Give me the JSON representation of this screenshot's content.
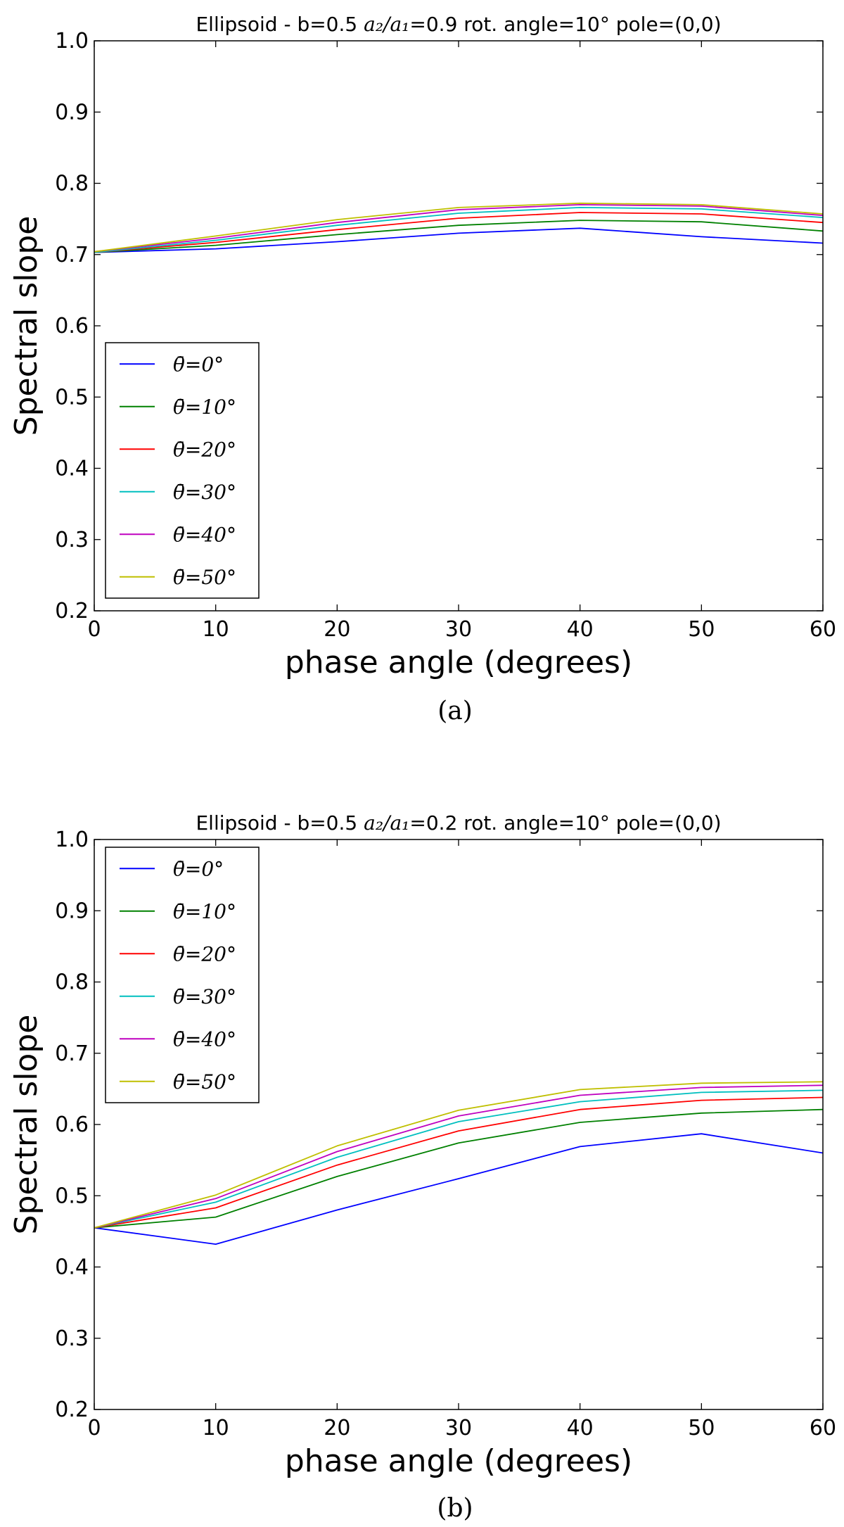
{
  "chart_data": [
    {
      "type": "line",
      "panel": "(a)",
      "title_parts": {
        "prefix": "Ellipsoid -",
        "b": "b=0.5",
        "ratio_math": "a₂/a₁",
        "ratio_value": "=0.9",
        "rot": "rot. angle=10°",
        "pole": "pole=(0,0)"
      },
      "xlabel": "phase angle (degrees)",
      "ylabel": "Spectral slope",
      "xlim": [
        0,
        60
      ],
      "ylim": [
        0.2,
        1.0
      ],
      "xticks": [
        0,
        10,
        20,
        30,
        40,
        50,
        60
      ],
      "xtick_labels": [
        "0",
        "10",
        "20",
        "30",
        "40",
        "50",
        "60"
      ],
      "yticks": [
        0.2,
        0.3,
        0.4,
        0.5,
        0.6,
        0.7,
        0.8,
        0.9,
        1.0
      ],
      "ytick_labels": [
        "0.2",
        "0.3",
        "0.4",
        "0.5",
        "0.6",
        "0.7",
        "0.8",
        "0.9",
        "1.0"
      ],
      "legend_position": "lower-left",
      "x": [
        0,
        10,
        20,
        30,
        40,
        50,
        60
      ],
      "series": [
        {
          "name": "θ̄=0°",
          "color": "#0000ff",
          "values": [
            0.703,
            0.708,
            0.718,
            0.73,
            0.737,
            0.725,
            0.716
          ]
        },
        {
          "name": "θ̄=10°",
          "color": "#008000",
          "values": [
            0.703,
            0.713,
            0.728,
            0.741,
            0.748,
            0.746,
            0.733
          ]
        },
        {
          "name": "θ̄=20°",
          "color": "#ff0000",
          "values": [
            0.703,
            0.717,
            0.735,
            0.751,
            0.759,
            0.757,
            0.745
          ]
        },
        {
          "name": "θ̄=30°",
          "color": "#00bfbf",
          "values": [
            0.703,
            0.72,
            0.741,
            0.758,
            0.766,
            0.764,
            0.752
          ]
        },
        {
          "name": "θ̄=40°",
          "color": "#bf00bf",
          "values": [
            0.704,
            0.723,
            0.745,
            0.763,
            0.77,
            0.768,
            0.755
          ]
        },
        {
          "name": "θ̄=50°",
          "color": "#bfbf00",
          "values": [
            0.704,
            0.726,
            0.749,
            0.766,
            0.772,
            0.77,
            0.757
          ]
        }
      ],
      "caption": "(a)"
    },
    {
      "type": "line",
      "panel": "(b)",
      "title_parts": {
        "prefix": "Ellipsoid -",
        "b": "b=0.5",
        "ratio_math": "a₂/a₁",
        "ratio_value": "=0.2",
        "rot": "rot. angle=10°",
        "pole": "pole=(0,0)"
      },
      "xlabel": "phase angle (degrees)",
      "ylabel": "Spectral slope",
      "xlim": [
        0,
        60
      ],
      "ylim": [
        0.2,
        1.0
      ],
      "xticks": [
        0,
        10,
        20,
        30,
        40,
        50,
        60
      ],
      "xtick_labels": [
        "0",
        "10",
        "20",
        "30",
        "40",
        "50",
        "60"
      ],
      "yticks": [
        0.2,
        0.3,
        0.4,
        0.5,
        0.6,
        0.7,
        0.8,
        0.9,
        1.0
      ],
      "ytick_labels": [
        "0.2",
        "0.3",
        "0.4",
        "0.5",
        "0.6",
        "0.7",
        "0.8",
        "0.9",
        "1.0"
      ],
      "legend_position": "upper-left",
      "x": [
        0,
        10,
        20,
        30,
        40,
        50,
        60
      ],
      "series": [
        {
          "name": "θ̄=0°",
          "color": "#0000ff",
          "values": [
            0.455,
            0.432,
            0.48,
            0.524,
            0.569,
            0.587,
            0.56
          ]
        },
        {
          "name": "θ̄=10°",
          "color": "#008000",
          "values": [
            0.455,
            0.47,
            0.527,
            0.574,
            0.603,
            0.616,
            0.621
          ]
        },
        {
          "name": "θ̄=20°",
          "color": "#ff0000",
          "values": [
            0.455,
            0.483,
            0.543,
            0.591,
            0.621,
            0.634,
            0.638
          ]
        },
        {
          "name": "θ̄=30°",
          "color": "#00bfbf",
          "values": [
            0.455,
            0.491,
            0.554,
            0.604,
            0.632,
            0.645,
            0.648
          ]
        },
        {
          "name": "θ̄=40°",
          "color": "#bf00bf",
          "values": [
            0.455,
            0.496,
            0.562,
            0.612,
            0.641,
            0.652,
            0.655
          ]
        },
        {
          "name": "θ̄=50°",
          "color": "#bfbf00",
          "values": [
            0.455,
            0.501,
            0.57,
            0.62,
            0.649,
            0.658,
            0.66
          ]
        }
      ],
      "caption": "(b)"
    }
  ]
}
